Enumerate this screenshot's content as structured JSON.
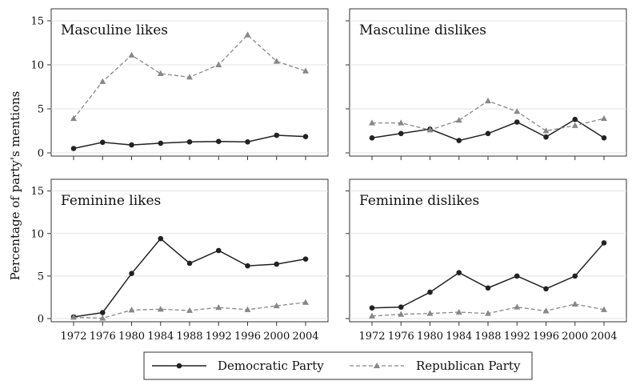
{
  "chart_data": {
    "type": "line",
    "ylabel": "Percentage of party's mentions",
    "ylim": [
      0,
      16
    ],
    "yticks": [
      0,
      5,
      10,
      15
    ],
    "categories": [
      "1972",
      "1976",
      "1980",
      "1984",
      "1988",
      "1992",
      "1996",
      "2000",
      "2004"
    ],
    "legend": {
      "placement": "bottom",
      "entries": [
        {
          "name": "Democratic Party",
          "style": "solid",
          "marker": "circle",
          "color": "#222222"
        },
        {
          "name": "Republican Party",
          "style": "dashed",
          "marker": "triangle",
          "color": "#888888"
        }
      ]
    },
    "panels": [
      {
        "title": "Masculine likes",
        "series": [
          {
            "name": "Democratic Party",
            "values": [
              0.5,
              1.2,
              0.9,
              1.1,
              1.25,
              1.3,
              1.25,
              2.0,
              1.85
            ]
          },
          {
            "name": "Republican Party",
            "values": [
              3.9,
              8.1,
              11.1,
              9.0,
              8.6,
              10.0,
              13.4,
              10.4,
              9.3
            ]
          }
        ]
      },
      {
        "title": "Masculine dislikes",
        "series": [
          {
            "name": "Democratic Party",
            "values": [
              1.7,
              2.2,
              2.7,
              1.4,
              2.2,
              3.5,
              1.8,
              3.8,
              1.7
            ]
          },
          {
            "name": "Republican Party",
            "values": [
              3.4,
              3.4,
              2.6,
              3.7,
              5.9,
              4.7,
              2.5,
              3.1,
              3.9
            ]
          }
        ]
      },
      {
        "title": "Feminine likes",
        "series": [
          {
            "name": "Democratic Party",
            "values": [
              0.2,
              0.7,
              5.3,
              9.4,
              6.5,
              8.0,
              6.2,
              6.4,
              7.0
            ]
          },
          {
            "name": "Republican Party",
            "values": [
              0.15,
              0.05,
              1.0,
              1.1,
              0.95,
              1.3,
              1.05,
              1.5,
              1.9
            ]
          }
        ]
      },
      {
        "title": "Feminine dislikes",
        "series": [
          {
            "name": "Democratic Party",
            "values": [
              1.25,
              1.35,
              3.1,
              5.4,
              3.6,
              5.0,
              3.5,
              5.0,
              8.9
            ]
          },
          {
            "name": "Republican Party",
            "values": [
              0.3,
              0.5,
              0.6,
              0.75,
              0.6,
              1.35,
              0.9,
              1.7,
              1.05
            ]
          }
        ]
      }
    ]
  }
}
